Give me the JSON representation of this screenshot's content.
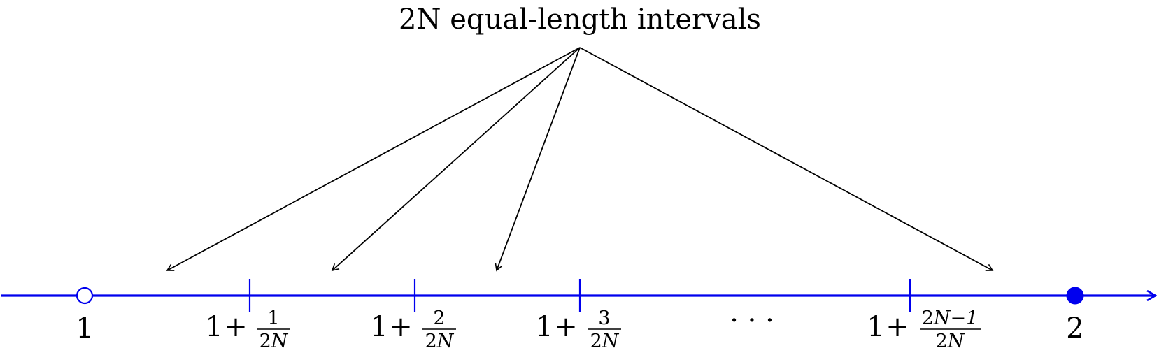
{
  "caption": "2N equal-length intervals",
  "colors": {
    "axis": "#0000ee",
    "arrows": "#000000",
    "text": "#000000"
  },
  "endpoints": {
    "left": {
      "label": "1",
      "marker": "open-circle"
    },
    "right": {
      "label": "2",
      "marker": "filled-circle"
    }
  },
  "ticks": [
    {
      "whole": "1",
      "op": "+",
      "num_a": "1",
      "num_b": "",
      "den_a": "2",
      "den_b": "N"
    },
    {
      "whole": "1",
      "op": "+",
      "num_a": "2",
      "num_b": "",
      "den_a": "2",
      "den_b": "N"
    },
    {
      "whole": "1",
      "op": "+",
      "num_a": "3",
      "num_b": "",
      "den_a": "2",
      "den_b": "N"
    },
    {
      "whole": "1",
      "op": "+",
      "num_a": "2",
      "num_b": "N−1",
      "den_a": "2",
      "den_b": "N"
    }
  ],
  "ellipsis": "· · ·"
}
